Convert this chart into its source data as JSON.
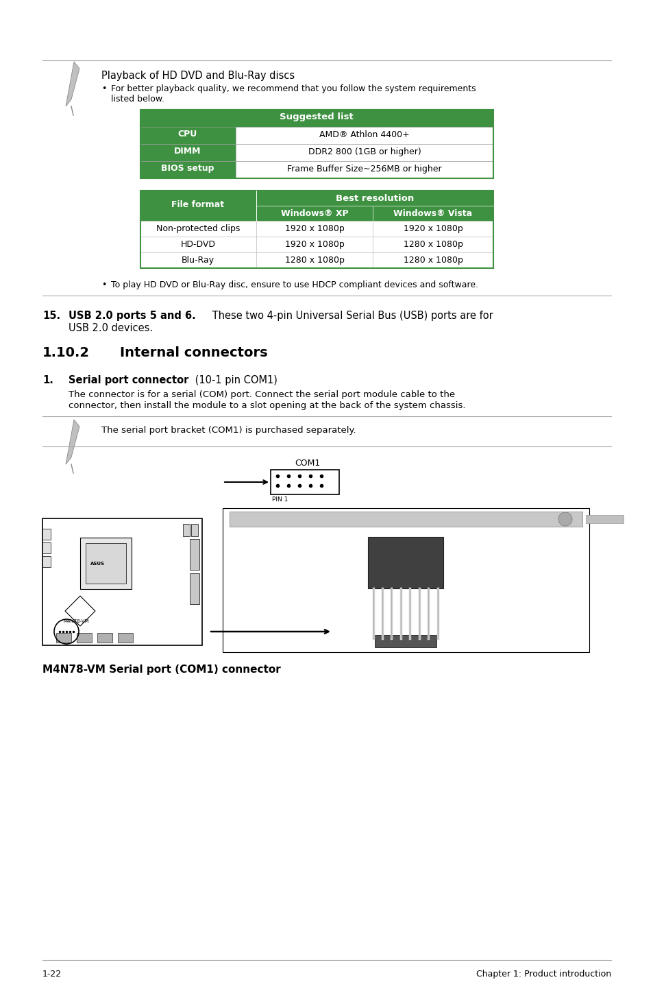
{
  "bg_color": "#ffffff",
  "green": "#3d9140",
  "white": "#ffffff",
  "black": "#000000",
  "gray_line": "#aaaaaa",
  "light_gray": "#f5f5f5",
  "suggested_header": "Suggested list",
  "suggested_rows": [
    [
      "CPU",
      "AMD® Athlon 4400+"
    ],
    [
      "DIMM",
      "DDR2 800 (1GB or higher)"
    ],
    [
      "BIOS setup",
      "Frame Buffer Size~256MB or higher"
    ]
  ],
  "file_format_label": "File format",
  "best_res_label": "Best resolution",
  "win_xp": "Windows® XP",
  "win_vista": "Windows® Vista",
  "file_rows": [
    [
      "Non-protected clips",
      "1920 x 1080p",
      "1920 x 1080p"
    ],
    [
      "HD-DVD",
      "1920 x 1080p",
      "1280 x 1080p"
    ],
    [
      "Blu-Ray",
      "1280 x 1080p",
      "1280 x 1080p"
    ]
  ],
  "playback_title": "Playback of HD DVD and Blu-Ray discs",
  "bullet1_line1": "For better playback quality, we recommend that you follow the system requirements",
  "bullet1_line2": "listed below.",
  "bullet2": "To play HD DVD or Blu-Ray disc, ensure to use HDCP compliant devices and software.",
  "s15_num": "15.",
  "s15_bold": "USB 2.0 ports 5 and 6.",
  "s15_rest_line1": " These two 4-pin Universal Serial Bus (USB) ports are for",
  "s15_line2": "USB 2.0 devices.",
  "sec_num": "1.10.2",
  "sec_title": "Internal connectors",
  "i1_num": "1.",
  "i1_bold": "Serial port connector",
  "i1_rest": " (10-1 pin COM1)",
  "i1_desc1": "The connector is for a serial (COM) port. Connect the serial port module cable to the",
  "i1_desc2": "connector, then install the module to a slot opening at the back of the system chassis.",
  "note2": "The serial port bracket (COM1) is purchased separately.",
  "com1_label": "COM1",
  "pin1_label": "PIN 1",
  "caption": "M4N78-VM Serial port (COM1) connector",
  "footer_left": "1-22",
  "footer_right": "Chapter 1: Product introduction"
}
